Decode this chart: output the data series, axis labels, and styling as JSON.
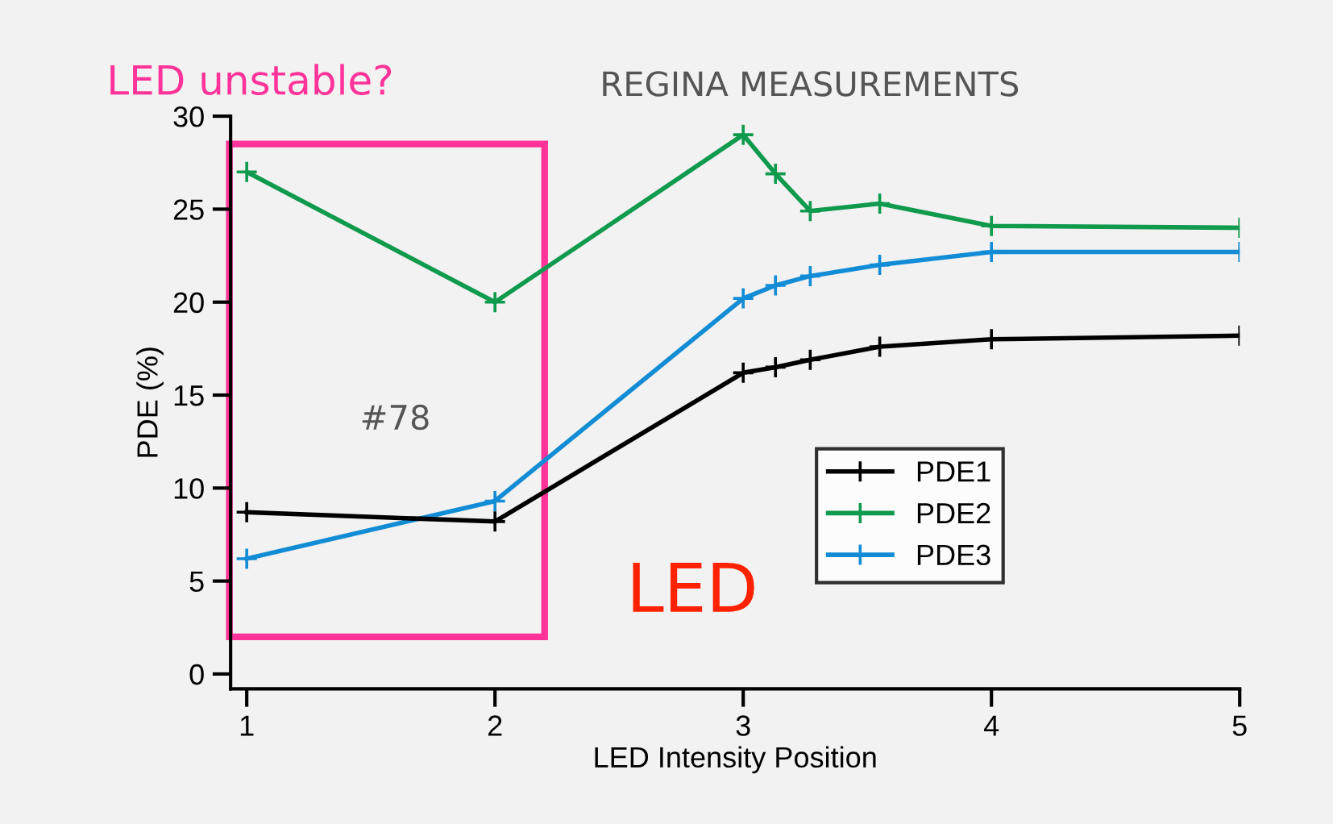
{
  "chart_data": {
    "type": "line",
    "xlabel": "LED Intensity Position",
    "ylabel": "PDE (%)",
    "xlim": [
      0.935,
      5
    ],
    "ylim": [
      -0.8,
      30
    ],
    "xticks": [
      1,
      2,
      3,
      4,
      5
    ],
    "yticks": [
      0,
      5,
      10,
      15,
      20,
      25,
      30
    ],
    "marker": "cross",
    "line_style": "solid",
    "grid": false,
    "legend": "lower right",
    "annotations": [
      "LED unstable?",
      "REGINA MEASUREMENTS",
      "#78",
      "LED"
    ],
    "series": [
      {
        "name": "PDE1",
        "color": "#000000",
        "x": [
          1,
          2,
          3,
          3.13,
          3.27,
          3.55,
          4,
          5
        ],
        "values": [
          8.7,
          8.2,
          16.2,
          16.5,
          16.9,
          17.6,
          18.0,
          18.2
        ]
      },
      {
        "name": "PDE2",
        "color": "#0f9a4e",
        "x": [
          1,
          2,
          3,
          3.13,
          3.27,
          3.55,
          4,
          5
        ],
        "values": [
          27.0,
          20.0,
          29.0,
          26.9,
          24.9,
          25.3,
          24.1,
          24.0
        ]
      },
      {
        "name": "PDE3",
        "color": "#138cd6",
        "x": [
          1,
          2,
          3,
          3.13,
          3.27,
          3.55,
          4,
          5
        ],
        "values": [
          6.2,
          9.3,
          20.2,
          20.9,
          21.4,
          22.0,
          22.7,
          22.7
        ]
      }
    ]
  }
}
